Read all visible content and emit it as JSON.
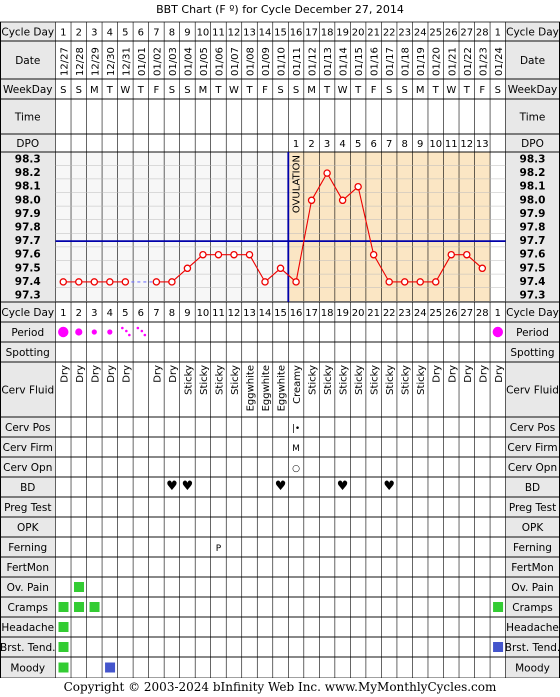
{
  "title": "BBT Chart (F º) for Cycle December 27, 2014",
  "copyright": "Copyright © 2003-2024 bInfinity Web Inc.     www.MyMonthlyCycles.com",
  "row_labels": {
    "cycle_day": "Cycle Day",
    "date": "Date",
    "weekday": "WeekDay",
    "time": "Time",
    "dpo": "DPO",
    "period": "Period",
    "spotting": "Spotting",
    "cerv_fluid": "Cerv Fluid",
    "cerv_pos": "Cerv Pos",
    "cerv_firm": "Cerv Firm",
    "cerv_opn": "Cerv Opn",
    "bd": "BD",
    "preg_test": "Preg Test",
    "opk": "OPK",
    "ferning": "Ferning",
    "fertmon": "FertMon",
    "ov_pain": "Ov. Pain",
    "cramps": "Cramps",
    "headache": "Headache",
    "brst_tend": "Brst. Tend.",
    "moody": "Moody"
  },
  "cycle_days": [
    "1",
    "2",
    "3",
    "4",
    "5",
    "6",
    "7",
    "8",
    "9",
    "10",
    "11",
    "12",
    "13",
    "14",
    "15",
    "16",
    "17",
    "18",
    "19",
    "20",
    "21",
    "22",
    "23",
    "24",
    "25",
    "26",
    "27",
    "28",
    "1"
  ],
  "dates": [
    "12/27",
    "12/28",
    "12/29",
    "12/30",
    "12/31",
    "01/01",
    "01/02",
    "01/03",
    "01/04",
    "01/05",
    "01/06",
    "01/07",
    "01/08",
    "01/09",
    "01/10",
    "01/11",
    "01/12",
    "01/13",
    "01/14",
    "01/15",
    "01/16",
    "01/17",
    "01/18",
    "01/19",
    "01/20",
    "01/21",
    "01/22",
    "01/23",
    "01/24"
  ],
  "weekdays": [
    "S",
    "S",
    "M",
    "T",
    "W",
    "T",
    "F",
    "S",
    "S",
    "M",
    "T",
    "W",
    "T",
    "F",
    "S",
    "S",
    "M",
    "T",
    "W",
    "T",
    "F",
    "S",
    "S",
    "M",
    "T",
    "W",
    "T",
    "F",
    "S"
  ],
  "dpo": [
    "",
    "",
    "",
    "",
    "",
    "",
    "",
    "",
    "",
    "",
    "",
    "",
    "",
    "",
    "",
    "1",
    "2",
    "3",
    "4",
    "5",
    "6",
    "7",
    "8",
    "9",
    "10",
    "11",
    "12",
    "13",
    ""
  ],
  "temp_labels": [
    "98.3",
    "98.2",
    "98.1",
    "98.0",
    "97.9",
    "97.8",
    "97.7",
    "97.6",
    "97.5",
    "97.4",
    "97.3"
  ],
  "ovulation_label": "OVULATION",
  "cerv_fluid": [
    "Dry",
    "Dry",
    "Dry",
    "Dry",
    "Dry",
    "",
    "Dry",
    "Dry",
    "Sticky",
    "Sticky",
    "Sticky",
    "Sticky",
    "Eggwhite",
    "Eggwhite",
    "Eggwhite",
    "Creamy",
    "Sticky",
    "Sticky",
    "Sticky",
    "Sticky",
    "Sticky",
    "Sticky",
    "Sticky",
    "Sticky",
    "Dry",
    "Dry",
    "Dry",
    "Dry",
    "Dry"
  ],
  "cerv_pos_mark": "|•",
  "cerv_firm_mark": "M",
  "cerv_opn_mark": "○",
  "ferning_mark": "P",
  "colors": {
    "period": "#ff00ff",
    "bd": "#e0357a",
    "coverline": "#0000aa",
    "ovulation": "#0000aa",
    "temp_line": "#ee0000",
    "post_ov_bg": "#fbe6c4",
    "pre_ov_bg": "#f7f7f7",
    "symptom_green": "#33cc33",
    "symptom_blue": "#4455cc",
    "label_bg": "#e8e8e8"
  },
  "chart_data": {
    "type": "line",
    "title": "BBT Chart (F º) for Cycle December 27, 2014",
    "xlabel": "Cycle Day",
    "ylabel": "",
    "ylim": [
      97.3,
      98.3
    ],
    "coverline": 97.7,
    "ovulation_day": 15,
    "x": [
      1,
      2,
      3,
      4,
      5,
      6,
      7,
      8,
      9,
      10,
      11,
      12,
      13,
      14,
      15,
      16,
      17,
      18,
      19,
      20,
      21,
      22,
      23,
      24,
      25,
      26,
      27,
      28
    ],
    "series": [
      {
        "values": [
          97.4,
          97.4,
          97.4,
          97.4,
          97.4,
          null,
          97.4,
          97.4,
          97.5,
          97.6,
          97.6,
          97.6,
          97.6,
          97.4,
          97.5,
          97.4,
          98.0,
          98.2,
          98.0,
          98.1,
          97.6,
          97.4,
          97.4,
          97.4,
          97.4,
          97.6,
          97.6,
          97.5
        ]
      }
    ],
    "grid": true,
    "period": [
      {
        "day": 1,
        "level": "heavy"
      },
      {
        "day": 2,
        "level": "medium"
      },
      {
        "day": 3,
        "level": "light"
      },
      {
        "day": 4,
        "level": "light"
      },
      {
        "day": 5,
        "level": "spotty"
      },
      {
        "day": 6,
        "level": "spotty"
      },
      {
        "day": 29,
        "level": "heavy"
      }
    ],
    "bd_days": [
      8,
      9,
      15,
      19,
      22
    ],
    "ov_pain_days": [
      2
    ],
    "cramps_days": [
      1,
      2,
      3,
      29
    ],
    "headache_days": [
      1
    ],
    "brst_tend_days": [
      1,
      29
    ],
    "moody_days": [
      1,
      4
    ]
  }
}
